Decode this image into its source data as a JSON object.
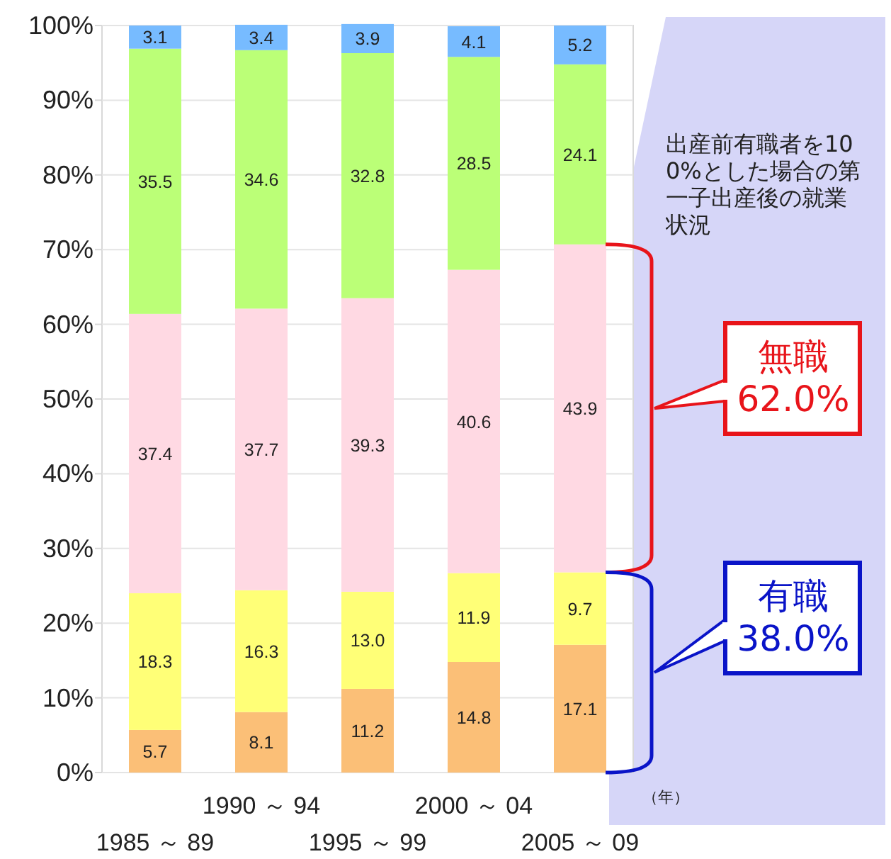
{
  "chart_data": {
    "type": "bar",
    "stacked": true,
    "categories": [
      "1985 ～ 89",
      "1990 ～ 94",
      "1995 ～ 99",
      "2000 ～ 04",
      "2005 ～ 09"
    ],
    "series": [
      {
        "color": "#fbbf77",
        "values": [
          5.7,
          8.1,
          11.2,
          14.8,
          17.1
        ]
      },
      {
        "color": "#ffff77",
        "values": [
          18.3,
          16.3,
          13.0,
          11.9,
          9.7
        ],
        "value_labels": [
          "18.3",
          "16.3",
          "13.0",
          "11.9",
          "9.7"
        ]
      },
      {
        "color": "#ffd9e3",
        "values": [
          37.4,
          37.7,
          39.3,
          40.6,
          43.9
        ]
      },
      {
        "color": "#bbff77",
        "values": [
          35.5,
          34.6,
          32.8,
          28.5,
          24.1
        ]
      },
      {
        "color": "#77bbff",
        "values": [
          3.1,
          3.4,
          3.9,
          4.1,
          5.2
        ]
      }
    ],
    "ylim": [
      0,
      100
    ],
    "yticks": [
      {
        "value": 0,
        "label": "0%"
      },
      {
        "value": 10,
        "label": "10%"
      },
      {
        "value": 20,
        "label": "20%"
      },
      {
        "value": 30,
        "label": "30%"
      },
      {
        "value": 40,
        "label": "40%"
      },
      {
        "value": 50,
        "label": "50%"
      },
      {
        "value": 60,
        "label": "60%"
      },
      {
        "value": 70,
        "label": "70%"
      },
      {
        "value": 80,
        "label": "80%"
      },
      {
        "value": 90,
        "label": "90%"
      },
      {
        "value": 100,
        "label": "100%"
      }
    ],
    "grid": "y",
    "data_labels": true,
    "annotations": [
      "（年）",
      "出産前有職者を100%とした場合の第一子出産後の就業状況",
      "無職 62.0%",
      "有職 38.0%"
    ]
  }
}
